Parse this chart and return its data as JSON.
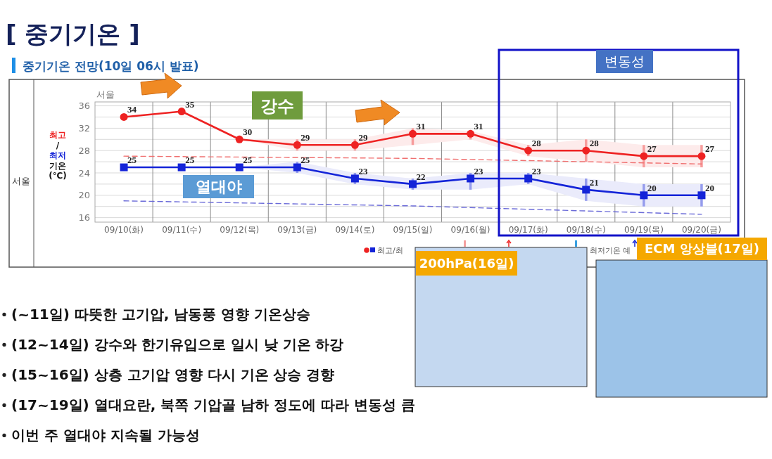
{
  "chart_data": {
    "type": "line",
    "title": "[ 중기기온 ]",
    "subtitle": "중기기온 전망(10일 06시 발표)",
    "ylabel": "최고 / 최저 기온 (℃)",
    "categories": [
      "09/10(화)",
      "09/11(수)",
      "09/12(목)",
      "09/13(금)",
      "09/14(토)",
      "09/15(일)",
      "09/16(월)",
      "09/17(화)",
      "09/18(수)",
      "09/19(목)",
      "09/20(금)"
    ],
    "ylim": [
      15.2,
      36.7
    ],
    "yticks": [
      16,
      {
        "value": 18,
        "label": null
      },
      20,
      {
        "value": 22,
        "label": null
      },
      24,
      {
        "value": 26,
        "label": null
      },
      28,
      {
        "value": 30,
        "label": null
      },
      32,
      {
        "value": 34,
        "label": null
      },
      36
    ],
    "grid": true,
    "series": [
      {
        "color": "#ee2222",
        "marker": "circle",
        "values": [
          34,
          35,
          30,
          29,
          29,
          31,
          31,
          28,
          28,
          27,
          27
        ],
        "value_labels": [
          "34",
          "35",
          "30",
          "29",
          "29",
          "31",
          "31",
          "28",
          "28",
          "27",
          "27"
        ],
        "errors": [
          null,
          null,
          null,
          [
            28,
            30
          ],
          [
            28,
            30
          ],
          [
            29,
            32
          ],
          [
            30,
            31.5
          ],
          [
            27,
            29
          ],
          [
            26,
            30
          ],
          [
            25,
            29
          ],
          [
            25,
            29
          ]
        ],
        "lower": [
          null,
          null,
          30,
          28,
          28,
          29,
          30,
          27,
          26,
          25,
          25
        ],
        "upper": [
          null,
          null,
          30,
          30,
          30,
          32,
          31.5,
          29,
          30,
          29,
          29
        ]
      },
      {
        "color": "#1424d8",
        "marker": "square",
        "values": [
          25,
          25,
          25,
          25,
          23,
          22,
          23,
          23,
          21,
          20,
          20
        ],
        "value_labels": [
          "25",
          "25",
          "25",
          "25",
          "23",
          "22",
          "23",
          "23",
          "21",
          "20",
          "20"
        ],
        "errors": [
          null,
          null,
          null,
          [
            24,
            26
          ],
          [
            22,
            24
          ],
          [
            21,
            23
          ],
          [
            21,
            24
          ],
          [
            22,
            24
          ],
          [
            19,
            23
          ],
          [
            18,
            22
          ],
          [
            18,
            22
          ]
        ],
        "lower": [
          null,
          null,
          25,
          24,
          22,
          21,
          21,
          22,
          19,
          18,
          18
        ],
        "upper": [
          null,
          null,
          25,
          26,
          24,
          23,
          24,
          24,
          23,
          22,
          22
        ]
      },
      {
        "color": "#f07070",
        "line_style": "dashed",
        "marker": "none",
        "x": [
          "09/10(화)",
          "09/15(일)",
          "09/20(금)"
        ],
        "values": [
          27,
          26.6,
          25.6
        ]
      },
      {
        "color": "#6a6ad8",
        "line_style": "dashed",
        "marker": "none",
        "x": [
          "09/10(화)",
          "09/15(일)",
          "09/20(금)"
        ],
        "values": [
          19,
          18.1,
          16.6
        ]
      }
    ],
    "annotations": [
      "서울",
      "서울",
      "강수",
      "열대야",
      "변동성",
      "200hPa(16일)",
      "ECM 앙상블(17일)",
      "최고/최",
      "최저기온 예",
      "(~11일) 따뜻한 고기압, 남동풍 영향 기온상승",
      "(12~14일) 강수와 한기유입으로 일시 낮 기온 하강",
      "(15~16일) 상층 고기압 영향 다시 기온 상승 경향",
      "(17~19일) 열대요란, 북쪽 기압골 남하 정도에 따라 변동성 큼",
      "이번 주 열대야 지속될 가능성"
    ]
  }
}
